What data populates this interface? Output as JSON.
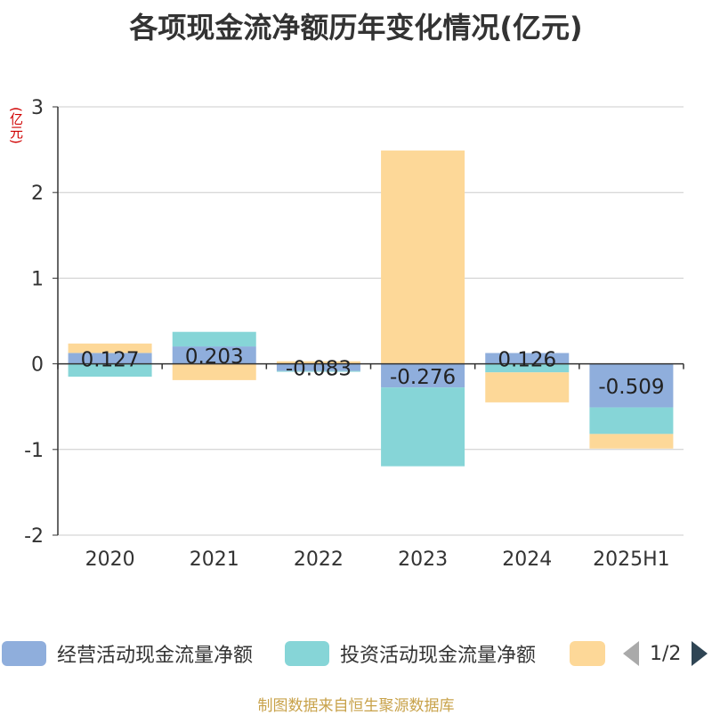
{
  "title": "各项现金流净额历年变化情况(亿元)",
  "unit_label": "(亿元)",
  "source": "制图数据来自恒生聚源数据库",
  "pager": "1/2",
  "colors": {
    "operating": "#8faedc",
    "investing": "#86d5d7",
    "financing": "#fdd898",
    "axis": "#333333",
    "grid": "#cccccc"
  },
  "legend": [
    {
      "name": "经营活动现金流量净额",
      "color": "#8faedc"
    },
    {
      "name": "投资活动现金流量净额",
      "color": "#86d5d7"
    },
    {
      "name": "",
      "color": "#fdd898"
    }
  ],
  "chart_data": {
    "type": "bar",
    "stacked": true,
    "categories": [
      "2020",
      "2021",
      "2022",
      "2023",
      "2024",
      "2025H1"
    ],
    "ylim": [
      -2,
      3
    ],
    "yticks": [
      "-2",
      "-1",
      "0",
      "1",
      "2",
      "3"
    ],
    "grid": true,
    "legend_position": "bottom",
    "series": [
      {
        "name": "经营活动现金流量净额",
        "values": [
          0.127,
          0.203,
          -0.083,
          -0.276,
          0.126,
          -0.509
        ],
        "labels": [
          "0.127",
          "0.203",
          "-0.083",
          "-0.276",
          "0.126",
          "-0.509"
        ]
      },
      {
        "name": "投资活动现金流量净额",
        "values": [
          -0.15,
          0.17,
          -0.01,
          -0.92,
          -0.1,
          -0.31
        ]
      },
      {
        "values": [
          0.11,
          -0.19,
          0.03,
          2.49,
          -0.35,
          -0.17
        ]
      }
    ]
  }
}
